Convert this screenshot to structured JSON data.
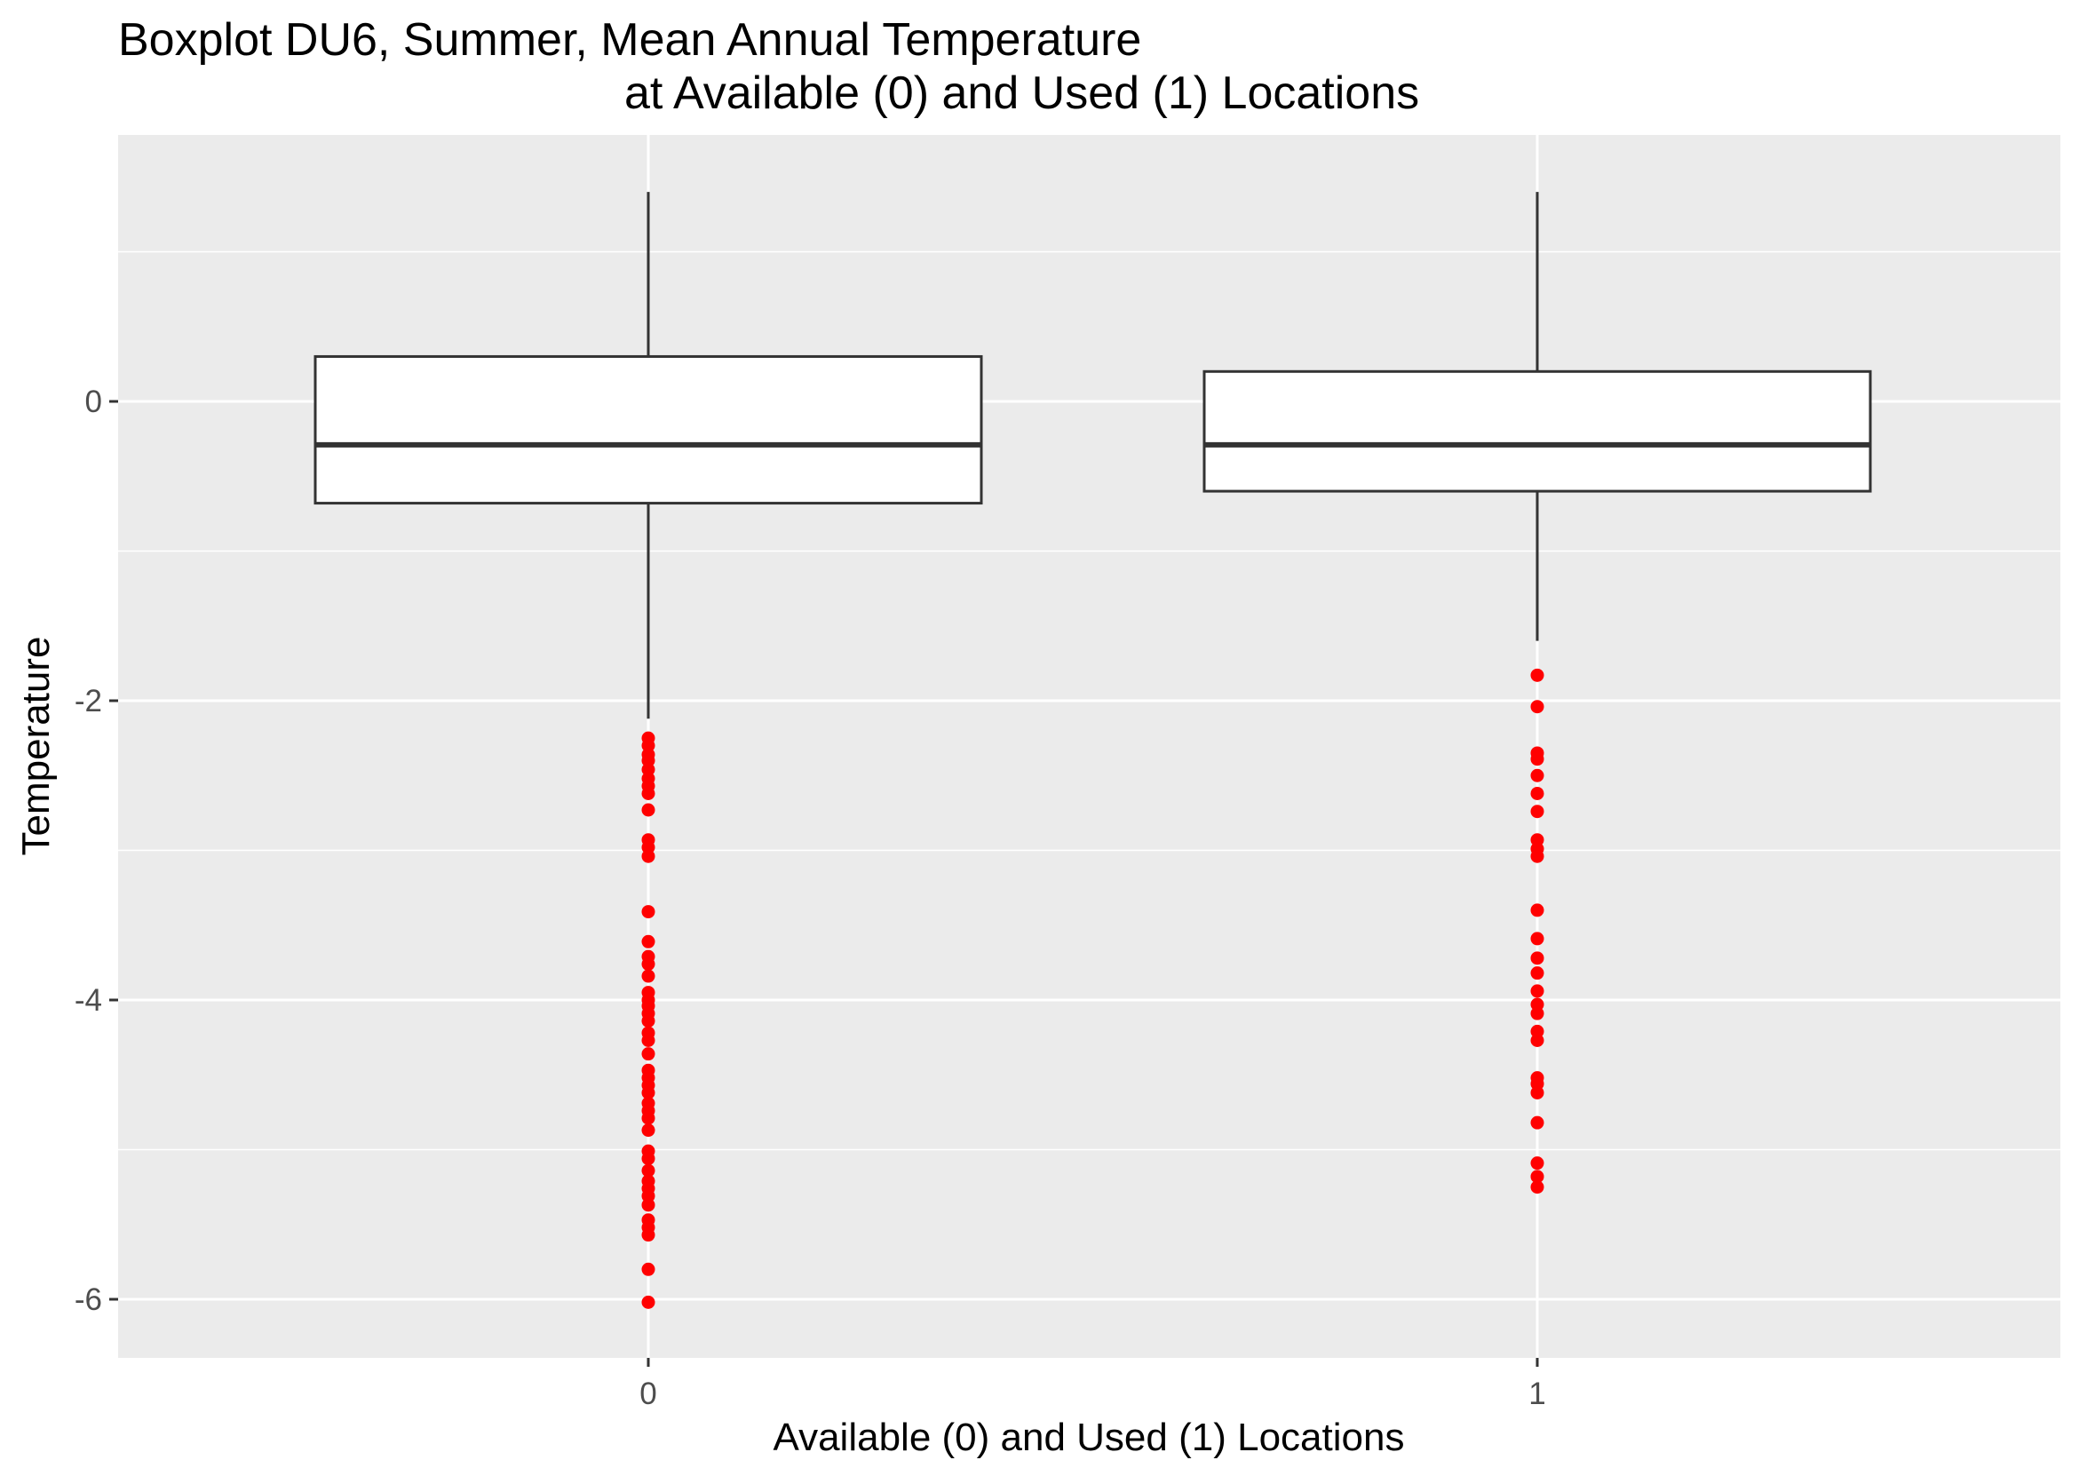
{
  "chart_data": {
    "type": "boxplot",
    "title_line1": "Boxplot DU6, Summer, Mean Annual Temperature",
    "title_line2": "at Available (0) and Used (1) Locations",
    "xlabel": "Available (0) and Used (1) Locations",
    "ylabel": "Temperature",
    "categories": [
      "0",
      "1"
    ],
    "ylim": [
      -6.4,
      1.75
    ],
    "yticks": [
      0,
      -2,
      -4,
      -6
    ],
    "ytick_labels": [
      "0",
      "-2",
      "-4",
      "-6"
    ],
    "grid": true,
    "outlier_color": "#ff0000",
    "panel_color": "#ebebeb",
    "boxes": [
      {
        "category": "0",
        "whisker_low": -2.12,
        "q1": -0.68,
        "median": -0.29,
        "q3": 0.3,
        "whisker_high": 1.4,
        "outliers": [
          -2.25,
          -2.3,
          -2.36,
          -2.4,
          -2.46,
          -2.52,
          -2.57,
          -2.62,
          -2.73,
          -2.93,
          -2.98,
          -3.04,
          -3.41,
          -3.61,
          -3.71,
          -3.76,
          -3.84,
          -3.95,
          -4.0,
          -4.04,
          -4.09,
          -4.14,
          -4.22,
          -4.27,
          -4.36,
          -4.47,
          -4.52,
          -4.57,
          -4.62,
          -4.69,
          -4.74,
          -4.79,
          -4.87,
          -5.01,
          -5.06,
          -5.14,
          -5.21,
          -5.26,
          -5.31,
          -5.37,
          -5.47,
          -5.52,
          -5.57,
          -5.8,
          -6.02
        ]
      },
      {
        "category": "1",
        "whisker_low": -1.6,
        "q1": -0.6,
        "median": -0.29,
        "q3": 0.2,
        "whisker_high": 1.4,
        "outliers": [
          -1.83,
          -2.04,
          -2.35,
          -2.39,
          -2.5,
          -2.62,
          -2.74,
          -2.93,
          -2.99,
          -3.04,
          -3.4,
          -3.59,
          -3.72,
          -3.82,
          -3.94,
          -4.03,
          -4.09,
          -4.21,
          -4.27,
          -4.52,
          -4.56,
          -4.62,
          -4.82,
          -5.09,
          -5.18,
          -5.25
        ]
      }
    ]
  }
}
